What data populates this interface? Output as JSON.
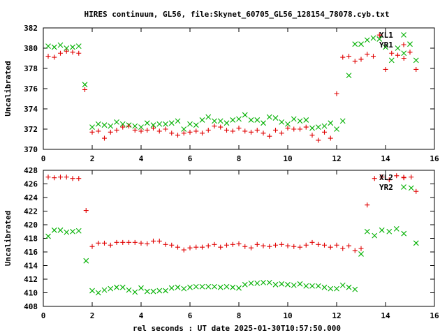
{
  "title": "HIRES continuum, GL56, file:Skynet_60705_GL56_128154_78078.cyb.txt",
  "xlabel": "rel seconds : UT date 2025-01-30T10:57:50.000",
  "colors": {
    "series_red": "#e00000",
    "series_green": "#00b000",
    "axis": "#000000"
  },
  "chart_data": [
    {
      "type": "scatter",
      "ylabel": "Uncalibrated",
      "xlim": [
        0,
        16
      ],
      "ylim": [
        370,
        382
      ],
      "xticks": [
        0,
        2,
        4,
        6,
        8,
        10,
        12,
        14,
        16
      ],
      "yticks": [
        370,
        372,
        374,
        376,
        378,
        380,
        382
      ],
      "legend_position": "top-right",
      "series": [
        {
          "name": "XL1",
          "color": "#00b000",
          "marker": "x",
          "x": [
            0.2,
            0.45,
            0.7,
            0.95,
            1.2,
            1.45,
            1.7,
            2.0,
            2.25,
            2.5,
            2.75,
            3.0,
            3.25,
            3.5,
            3.75,
            4.0,
            4.25,
            4.5,
            4.75,
            5.0,
            5.25,
            5.5,
            5.75,
            6.0,
            6.25,
            6.5,
            6.75,
            7.0,
            7.25,
            7.5,
            7.75,
            8.0,
            8.25,
            8.5,
            8.75,
            9.0,
            9.25,
            9.5,
            9.75,
            10.0,
            10.25,
            10.5,
            10.75,
            11.0,
            11.25,
            11.5,
            11.75,
            12.0,
            12.25,
            12.5,
            12.75,
            13.0,
            13.25,
            13.5,
            13.75,
            14.0,
            14.25,
            14.5,
            14.75,
            15.0,
            15.25
          ],
          "y": [
            380.2,
            380.1,
            380.3,
            380.0,
            380.1,
            380.2,
            376.4,
            372.2,
            372.5,
            372.4,
            372.3,
            372.7,
            372.5,
            372.4,
            372.3,
            372.2,
            372.6,
            372.4,
            372.5,
            372.5,
            372.6,
            372.8,
            372.0,
            372.5,
            372.4,
            372.9,
            373.2,
            372.8,
            372.8,
            372.6,
            372.9,
            373.0,
            373.4,
            372.9,
            372.9,
            372.6,
            373.2,
            373.1,
            372.7,
            372.5,
            373.0,
            372.8,
            372.9,
            372.1,
            372.2,
            372.3,
            372.6,
            372.0,
            372.8,
            377.3,
            380.4,
            380.4,
            380.8,
            381.0,
            380.9,
            380.1,
            378.8,
            380.0,
            379.5,
            380.4,
            378.8
          ]
        },
        {
          "name": "YR1",
          "color": "#e00000",
          "marker": "+",
          "x": [
            0.2,
            0.45,
            0.7,
            0.95,
            1.2,
            1.45,
            1.7,
            2.0,
            2.25,
            2.5,
            2.75,
            3.0,
            3.25,
            3.5,
            3.75,
            4.0,
            4.25,
            4.5,
            4.75,
            5.0,
            5.25,
            5.5,
            5.75,
            6.0,
            6.25,
            6.5,
            6.75,
            7.0,
            7.25,
            7.5,
            7.75,
            8.0,
            8.25,
            8.5,
            8.75,
            9.0,
            9.25,
            9.5,
            9.75,
            10.0,
            10.25,
            10.5,
            10.75,
            11.0,
            11.25,
            11.5,
            11.75,
            12.0,
            12.25,
            12.5,
            12.75,
            13.0,
            13.25,
            13.5,
            13.75,
            14.0,
            14.25,
            14.5,
            14.75,
            15.0,
            15.25
          ],
          "y": [
            379.2,
            379.1,
            379.5,
            379.7,
            379.6,
            379.5,
            375.9,
            371.7,
            371.8,
            371.1,
            371.7,
            371.9,
            372.2,
            372.3,
            371.9,
            371.8,
            371.9,
            372.1,
            371.8,
            372.0,
            371.6,
            371.4,
            371.6,
            371.7,
            371.8,
            371.6,
            371.9,
            372.3,
            372.2,
            371.9,
            371.8,
            372.1,
            371.8,
            371.7,
            371.9,
            371.6,
            371.3,
            371.9,
            371.6,
            372.1,
            372.0,
            372.0,
            372.2,
            371.4,
            370.9,
            371.7,
            371.1,
            375.5,
            379.1,
            379.2,
            378.7,
            378.9,
            379.4,
            379.2,
            381.3,
            377.9,
            379.5,
            379.3,
            379.0,
            379.6,
            377.9
          ]
        }
      ]
    },
    {
      "type": "scatter",
      "ylabel": "Uncalibrated",
      "xlim": [
        0,
        16
      ],
      "ylim": [
        408,
        428
      ],
      "xticks": [
        0,
        2,
        4,
        6,
        8,
        10,
        12,
        14,
        16
      ],
      "yticks": [
        408,
        410,
        412,
        414,
        416,
        418,
        420,
        422,
        424,
        426,
        428
      ],
      "legend_position": "top-right",
      "series": [
        {
          "name": "XL2",
          "color": "#e00000",
          "marker": "+",
          "x": [
            0.2,
            0.45,
            0.7,
            0.95,
            1.2,
            1.45,
            1.75,
            2.0,
            2.25,
            2.5,
            2.75,
            3.0,
            3.25,
            3.5,
            3.75,
            4.0,
            4.25,
            4.5,
            4.75,
            5.0,
            5.25,
            5.5,
            5.75,
            6.0,
            6.25,
            6.5,
            6.75,
            7.0,
            7.25,
            7.5,
            7.75,
            8.0,
            8.25,
            8.5,
            8.75,
            9.0,
            9.25,
            9.5,
            9.75,
            10.0,
            10.25,
            10.5,
            10.75,
            11.0,
            11.25,
            11.5,
            11.75,
            12.0,
            12.25,
            12.5,
            12.75,
            13.0,
            13.25,
            13.55,
            13.85,
            14.15,
            14.45,
            14.75,
            15.05,
            15.25
          ],
          "y": [
            427.0,
            426.9,
            427.0,
            427.0,
            426.8,
            426.8,
            422.1,
            416.8,
            417.3,
            417.3,
            417.0,
            417.4,
            417.4,
            417.4,
            417.4,
            417.3,
            417.2,
            417.6,
            417.6,
            417.1,
            417.0,
            416.7,
            416.3,
            416.6,
            416.7,
            416.7,
            416.9,
            417.1,
            416.7,
            417.0,
            417.1,
            417.2,
            416.8,
            416.6,
            417.1,
            416.9,
            416.8,
            417.0,
            417.1,
            416.9,
            416.8,
            416.7,
            417.0,
            417.4,
            417.1,
            417.0,
            416.7,
            417.0,
            416.5,
            416.9,
            416.2,
            416.5,
            422.9,
            426.8,
            427.0,
            426.6,
            427.2,
            426.9,
            427.0,
            424.9
          ]
        },
        {
          "name": "YR2",
          "color": "#00b000",
          "marker": "x",
          "x": [
            0.2,
            0.45,
            0.7,
            0.95,
            1.2,
            1.45,
            1.75,
            2.0,
            2.25,
            2.5,
            2.75,
            3.0,
            3.25,
            3.5,
            3.75,
            4.0,
            4.25,
            4.5,
            4.75,
            5.0,
            5.25,
            5.5,
            5.75,
            6.0,
            6.25,
            6.5,
            6.75,
            7.0,
            7.25,
            7.5,
            7.75,
            8.0,
            8.25,
            8.5,
            8.75,
            9.0,
            9.25,
            9.5,
            9.75,
            10.0,
            10.25,
            10.5,
            10.75,
            11.0,
            11.25,
            11.5,
            11.75,
            12.0,
            12.25,
            12.5,
            12.75,
            13.0,
            13.25,
            13.55,
            13.85,
            14.15,
            14.45,
            14.75,
            15.05,
            15.25
          ],
          "y": [
            418.3,
            419.2,
            419.2,
            418.9,
            419.0,
            419.1,
            414.7,
            410.3,
            410.0,
            410.4,
            410.6,
            410.8,
            410.8,
            410.4,
            410.1,
            410.7,
            410.2,
            410.2,
            410.3,
            410.3,
            410.7,
            410.8,
            410.6,
            410.8,
            410.9,
            410.9,
            410.9,
            410.9,
            410.8,
            410.9,
            410.8,
            410.7,
            411.2,
            411.4,
            411.4,
            411.5,
            411.5,
            411.2,
            411.3,
            411.2,
            411.1,
            411.3,
            411.0,
            411.0,
            411.0,
            410.8,
            410.6,
            410.6,
            411.1,
            410.8,
            410.5,
            415.7,
            419.0,
            418.4,
            419.2,
            419.0,
            419.4,
            418.7,
            425.4,
            417.3
          ]
        }
      ]
    }
  ]
}
